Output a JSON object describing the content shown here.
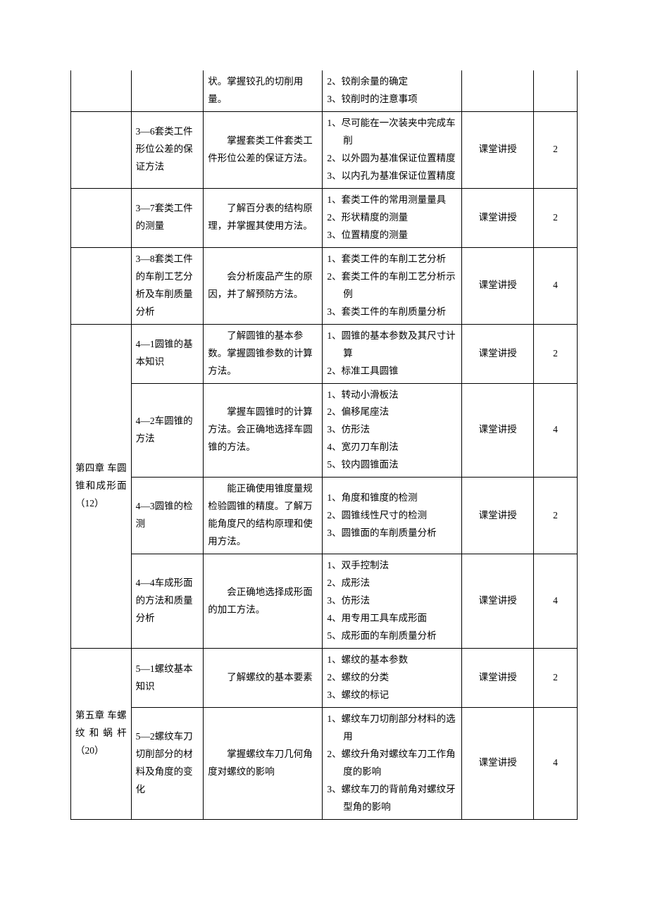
{
  "rows": [
    {
      "chapter": "",
      "section": "",
      "objective": "状。掌握铰孔的切削用量。",
      "content_items": [
        "2、铰削余量的确定",
        "3、铰削时的注意事项"
      ],
      "method": "",
      "hours": "",
      "top_continuation": true
    },
    {
      "chapter": "",
      "section": "3—6套类工件形位公差的保证方法",
      "objective": "掌握套类工件套类工件形位公差的保证方法。",
      "content_items": [
        "1、尽可能在一次装夹中完成车削",
        "2、以外圆为基准保证位置精度",
        "3、以内孔为基准保证位置精度"
      ],
      "method": "课堂讲授",
      "hours": "2"
    },
    {
      "chapter": "",
      "section": "3—7套类工件的测量",
      "objective": "了解百分表的结构原理，并掌握其使用方法。",
      "content_items": [
        "1、套类工件的常用测量量具",
        "2、形状精度的测量",
        "3、位置精度的测量"
      ],
      "method": "课堂讲授",
      "hours": "2"
    },
    {
      "chapter": "",
      "section": "3—8套类工件的车削工艺分析及车削质量分析",
      "objective": "会分析废品产生的原因，并了解预防方法。",
      "content_items": [
        "1、套类工件的车削工艺分析",
        "2、套类工件的车削工艺分析示例",
        "3、套类工件的车削质量分析"
      ],
      "method": "课堂讲授",
      "hours": "4"
    },
    {
      "chapter": "第四章 车圆锥和成形面\n（12）",
      "chapter_rowspan": 4,
      "section": "4—1圆锥的基本知识",
      "objective": "了解圆锥的基本参数。掌握圆锥参数的计算方法。",
      "content_items": [
        "1、圆锥的基本参数及其尺寸计算",
        "2、标准工具圆锥"
      ],
      "method": "课堂讲授",
      "hours": "2"
    },
    {
      "section": "4—2车圆锥的方法",
      "objective": "掌握车圆锥时的计算方法。会正确地选择车圆锥的方法。",
      "content_items": [
        "1、转动小滑板法",
        "2、偏移尾座法",
        "3、仿形法",
        "4、宽刃刀车削法",
        "5、铰内圆锥面法"
      ],
      "method": "课堂讲授",
      "hours": "4"
    },
    {
      "section": "4—3圆锥的检测",
      "objective": "能正确使用锥度量规检验圆锥的精度。了解万能角度尺的结构原理和使用方法。",
      "content_items": [
        "1、角度和锥度的检测",
        "2、圆锥线性尺寸的检测",
        "3、圆锥面的车削质量分析"
      ],
      "method": "课堂讲授",
      "hours": "2"
    },
    {
      "section": "4—4车成形面的方法和质量分析",
      "objective": "会正确地选择成形面的加工方法。",
      "content_items": [
        "1、双手控制法",
        "2、成形法",
        "3、仿形法",
        "4、用专用工具车成形面",
        "5、成形面的车削质量分析"
      ],
      "method": "课堂讲授",
      "hours": "4"
    },
    {
      "chapter": "第五章 车螺纹和蜗杆\n（20）",
      "chapter_rowspan": 2,
      "section": "5—1螺纹基本知识",
      "objective": "了解螺纹的基本要素",
      "content_items": [
        "1、螺纹的基本参数",
        "2、螺纹的分类",
        "3、螺纹的标记"
      ],
      "method": "课堂讲授",
      "hours": "2"
    },
    {
      "section": "5—2螺纹车刀切削部分的材料及角度的变化",
      "objective": "掌握螺纹车刀几何角度对螺纹的影响",
      "content_items": [
        "1、螺纹车刀切削部分材料的选用",
        "2、螺纹升角对螺纹车刀工作角度的影响",
        "3、螺纹车刀的背前角对螺纹牙型角的影响"
      ],
      "method": "课堂讲授",
      "hours": "4"
    }
  ]
}
